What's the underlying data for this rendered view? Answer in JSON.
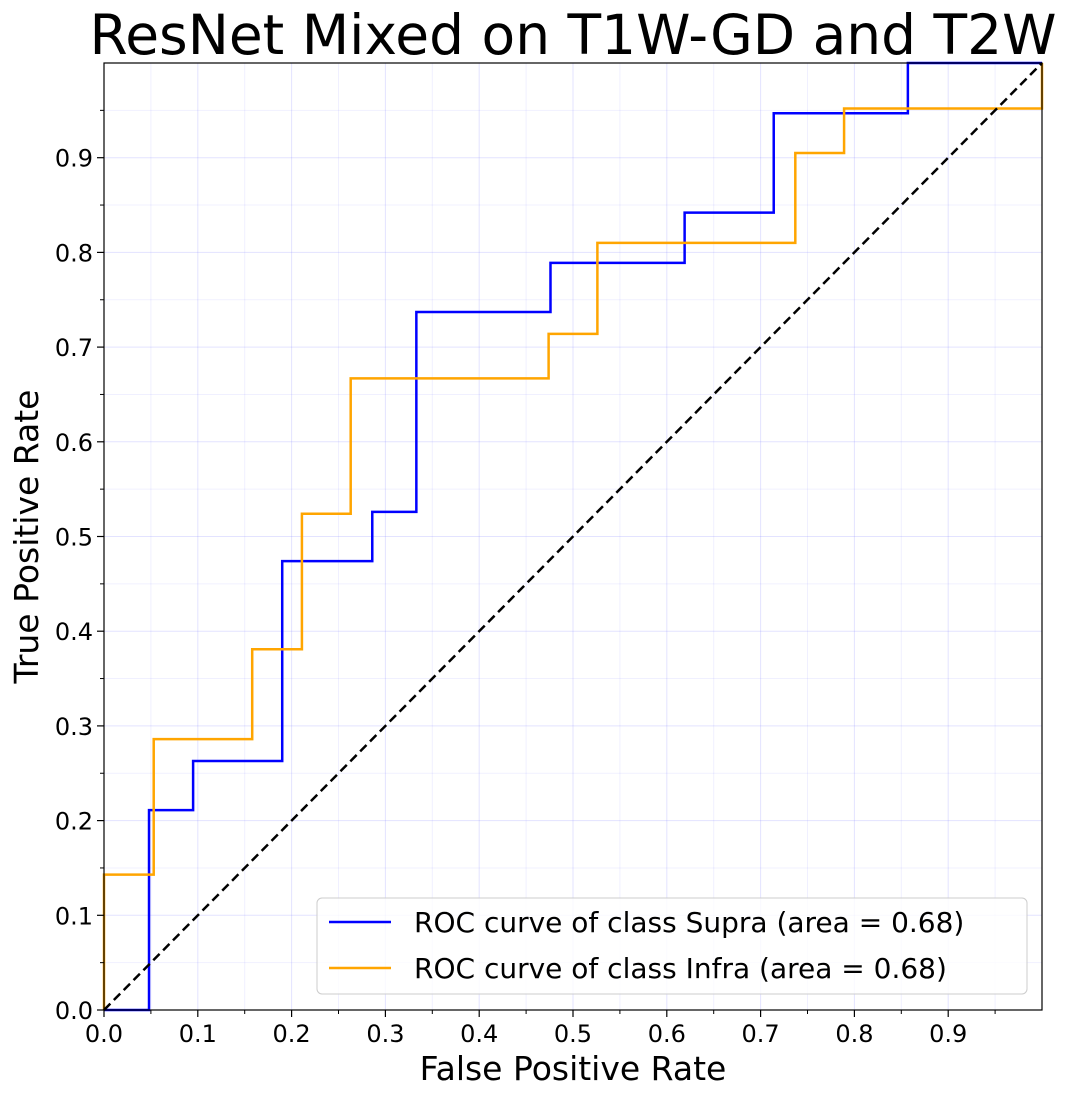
{
  "chart_data": {
    "type": "line",
    "title": "ResNet Mixed on T1W-GD and T2W",
    "xlabel": "False Positive Rate",
    "ylabel": "True Positive Rate",
    "xlim": [
      0,
      1.0
    ],
    "ylim": [
      0,
      1.0
    ],
    "xticks": [
      0.0,
      0.1,
      0.2,
      0.3,
      0.4,
      0.5,
      0.6,
      0.7,
      0.8,
      0.9
    ],
    "xtick_labels": [
      "0.0",
      "0.1",
      "0.2",
      "0.3",
      "0.4",
      "0.5",
      "0.6",
      "0.7",
      "0.8",
      "0.9"
    ],
    "yticks": [
      0.0,
      0.1,
      0.2,
      0.3,
      0.4,
      0.5,
      0.6,
      0.7,
      0.8,
      0.9
    ],
    "ytick_labels": [
      "0.0",
      "0.1",
      "0.2",
      "0.3",
      "0.4",
      "0.5",
      "0.6",
      "0.7",
      "0.8",
      "0.9"
    ],
    "grid": true,
    "legend_position": "lower-right",
    "series": [
      {
        "name": "ROC curve of class Supra (area = 0.68)",
        "color": "#0000ff",
        "x": [
          0.0,
          0.048,
          0.048,
          0.095,
          0.095,
          0.19,
          0.19,
          0.286,
          0.286,
          0.333,
          0.333,
          0.476,
          0.476,
          0.619,
          0.619,
          0.714,
          0.714,
          0.857,
          0.857,
          1.0
        ],
        "y": [
          0.0,
          0.0,
          0.211,
          0.211,
          0.263,
          0.263,
          0.474,
          0.474,
          0.526,
          0.526,
          0.737,
          0.737,
          0.789,
          0.789,
          0.842,
          0.842,
          0.947,
          0.947,
          1.0,
          1.0
        ]
      },
      {
        "name": "ROC curve of class Infra (area = 0.68)",
        "color": "#ffa500",
        "x": [
          0.0,
          0.0,
          0.053,
          0.053,
          0.158,
          0.158,
          0.211,
          0.211,
          0.263,
          0.263,
          0.474,
          0.474,
          0.526,
          0.526,
          0.737,
          0.737,
          0.789,
          0.789,
          1.0,
          1.0
        ],
        "y": [
          0.0,
          0.143,
          0.143,
          0.286,
          0.286,
          0.381,
          0.381,
          0.524,
          0.524,
          0.667,
          0.667,
          0.714,
          0.714,
          0.81,
          0.81,
          0.905,
          0.905,
          0.952,
          0.952,
          1.0
        ]
      },
      {
        "name": "",
        "color": "#000000",
        "dashed": true,
        "x": [
          0.0,
          1.0
        ],
        "y": [
          0.0,
          1.0
        ]
      }
    ]
  }
}
